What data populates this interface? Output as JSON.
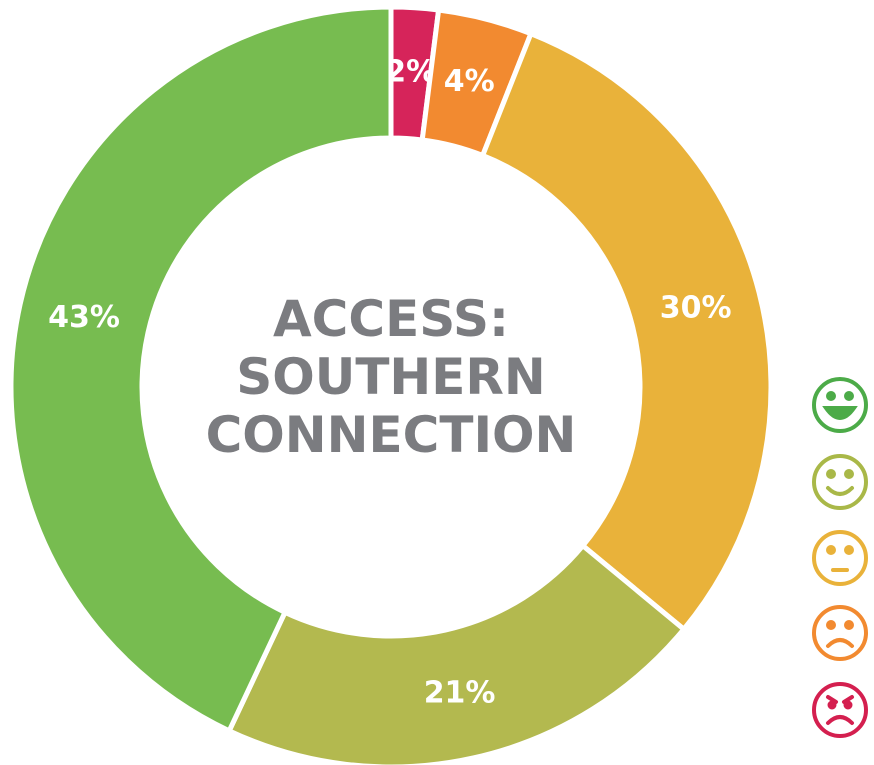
{
  "chart_data": {
    "type": "donut",
    "title": "ACCESS: SOUTHERN CONNECTION",
    "categories": [
      null,
      null,
      null,
      null,
      null
    ],
    "values": [
      2,
      4,
      30,
      21,
      43
    ],
    "value_labels": [
      "2%",
      "4%",
      "30%",
      "21%",
      "43%"
    ],
    "colors": [
      "#d6245a",
      "#f28a30",
      "#e9b23a",
      "#b3b94f",
      "#77bc50"
    ]
  }
}
